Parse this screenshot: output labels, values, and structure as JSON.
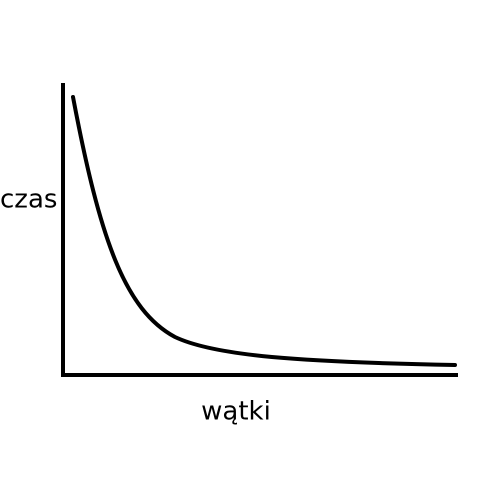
{
  "axes": {
    "y_label": "czas",
    "x_label": "wątki"
  }
}
